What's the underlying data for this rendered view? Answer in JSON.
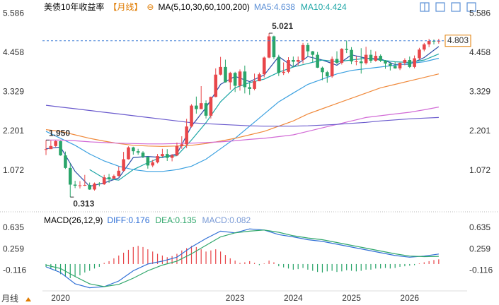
{
  "ui": {
    "period_button": "月线"
  },
  "chart_data": [
    {
      "type": "candlestick",
      "title": "美债10年收益率",
      "period": "【月线】",
      "ma_label": "MA(5,10,30,60,100,200)",
      "up_color": "#e8464a",
      "down_color": "#2aa56a",
      "categories": [
        null,
        null,
        null,
        "2020",
        null,
        null,
        null,
        null,
        null,
        null,
        null,
        null,
        null,
        null,
        null,
        null,
        null,
        null,
        null,
        null,
        null,
        null,
        null,
        null,
        null,
        null,
        null,
        null,
        null,
        null,
        null,
        null,
        null,
        null,
        null,
        null,
        null,
        null,
        null,
        "2023",
        null,
        null,
        null,
        null,
        null,
        null,
        null,
        null,
        null,
        null,
        null,
        "2024",
        null,
        null,
        null,
        null,
        null,
        null,
        null,
        null,
        null,
        null,
        null,
        "2025",
        null,
        null,
        null,
        null,
        null,
        null,
        null,
        null,
        null,
        null,
        null,
        "2026",
        null,
        null,
        null,
        null,
        null,
        null
      ],
      "ohlc": [
        [
          1.68,
          1.95,
          1.52,
          1.69
        ],
        [
          1.69,
          1.94,
          1.7,
          1.78
        ],
        [
          1.78,
          1.94,
          1.75,
          1.92
        ],
        [
          1.92,
          1.93,
          1.5,
          1.51
        ],
        [
          1.51,
          1.62,
          1.12,
          1.15
        ],
        [
          1.15,
          1.28,
          0.313,
          0.67
        ],
        [
          0.67,
          0.78,
          0.57,
          0.64
        ],
        [
          0.64,
          0.77,
          0.56,
          0.65
        ],
        [
          0.65,
          0.95,
          0.63,
          0.66
        ],
        [
          0.66,
          0.73,
          0.52,
          0.53
        ],
        [
          0.53,
          0.73,
          0.5,
          0.7
        ],
        [
          0.7,
          0.74,
          0.62,
          0.68
        ],
        [
          0.68,
          0.95,
          0.66,
          0.88
        ],
        [
          0.88,
          0.98,
          0.72,
          0.84
        ],
        [
          0.84,
          0.96,
          0.83,
          0.92
        ],
        [
          0.92,
          1.19,
          0.9,
          1.07
        ],
        [
          1.07,
          1.61,
          1.05,
          1.4
        ],
        [
          1.4,
          1.77,
          1.39,
          1.74
        ],
        [
          1.74,
          1.76,
          1.53,
          1.63
        ],
        [
          1.63,
          1.7,
          1.53,
          1.59
        ],
        [
          1.59,
          1.63,
          1.43,
          1.47
        ],
        [
          1.47,
          1.48,
          1.13,
          1.22
        ],
        [
          1.22,
          1.38,
          1.17,
          1.31
        ],
        [
          1.31,
          1.55,
          1.28,
          1.49
        ],
        [
          1.49,
          1.7,
          1.46,
          1.55
        ],
        [
          1.55,
          1.69,
          1.35,
          1.44
        ],
        [
          1.44,
          1.55,
          1.34,
          1.51
        ],
        [
          1.51,
          1.88,
          1.49,
          1.78
        ],
        [
          1.78,
          2.06,
          1.7,
          1.83
        ],
        [
          1.83,
          2.56,
          1.72,
          2.34
        ],
        [
          2.34,
          2.98,
          2.31,
          2.94
        ],
        [
          2.94,
          3.2,
          2.71,
          2.84
        ],
        [
          2.84,
          3.5,
          2.84,
          3.01
        ],
        [
          3.01,
          3.09,
          2.57,
          2.65
        ],
        [
          2.65,
          3.2,
          2.57,
          3.19
        ],
        [
          3.19,
          4.01,
          3.18,
          3.83
        ],
        [
          3.83,
          4.34,
          3.81,
          4.05
        ],
        [
          4.05,
          4.26,
          3.6,
          3.61
        ],
        [
          3.61,
          3.91,
          3.4,
          3.88
        ],
        [
          3.88,
          3.91,
          3.33,
          3.51
        ],
        [
          3.51,
          3.98,
          3.37,
          3.92
        ],
        [
          3.92,
          4.09,
          3.29,
          3.47
        ],
        [
          3.47,
          3.61,
          3.25,
          3.42
        ],
        [
          3.42,
          3.86,
          3.38,
          3.64
        ],
        [
          3.64,
          3.89,
          3.64,
          3.84
        ],
        [
          3.84,
          4.35,
          3.75,
          4.32
        ],
        [
          4.32,
          5.021,
          4.3,
          4.93
        ],
        [
          4.93,
          4.95,
          4.28,
          4.33
        ],
        [
          4.33,
          4.4,
          3.79,
          3.88
        ],
        [
          3.88,
          4.18,
          3.82,
          3.91
        ],
        [
          3.91,
          4.33,
          3.87,
          4.25
        ],
        [
          4.25,
          4.35,
          4.04,
          4.2
        ],
        [
          4.2,
          4.35,
          4.09,
          4.25
        ],
        [
          4.25,
          4.74,
          4.15,
          4.68
        ],
        [
          4.68,
          4.74,
          4.35,
          4.5
        ],
        [
          4.5,
          4.51,
          4.19,
          4.4
        ],
        [
          4.4,
          4.48,
          4.02,
          4.03
        ],
        [
          4.03,
          4.06,
          3.67,
          3.9
        ],
        [
          3.9,
          3.94,
          3.6,
          3.78
        ],
        [
          3.78,
          4.35,
          3.74,
          4.28
        ],
        [
          4.28,
          4.5,
          4.13,
          4.17
        ],
        [
          4.17,
          4.59,
          4.12,
          4.57
        ],
        [
          4.57,
          4.81,
          4.45,
          4.54
        ],
        [
          4.54,
          4.62,
          4.13,
          4.21
        ],
        [
          4.21,
          4.36,
          4.1,
          4.21
        ],
        [
          4.21,
          4.59,
          3.86,
          4.16
        ],
        [
          4.16,
          4.63,
          4.12,
          4.4
        ],
        [
          4.4,
          4.54,
          4.17,
          4.23
        ],
        [
          4.23,
          4.5,
          4.2,
          4.37
        ],
        [
          4.37,
          4.41,
          4.19,
          4.23
        ],
        [
          4.23,
          4.25,
          4.0,
          4.15
        ],
        [
          4.15,
          4.17,
          3.95,
          4.08
        ],
        [
          4.08,
          4.2,
          4.0,
          4.01
        ],
        [
          4.01,
          4.18,
          3.96,
          4.17
        ],
        [
          4.17,
          4.3,
          4.1,
          4.25
        ],
        [
          4.25,
          4.35,
          4.02,
          4.05
        ],
        [
          4.05,
          4.38,
          4.01,
          4.3
        ],
        [
          4.3,
          4.6,
          4.25,
          4.55
        ],
        [
          4.55,
          4.74,
          4.5,
          4.7
        ],
        [
          4.7,
          4.86,
          4.62,
          4.8
        ],
        [
          4.8,
          4.84,
          4.7,
          4.78
        ],
        [
          4.78,
          4.86,
          4.72,
          4.803
        ]
      ],
      "line_x": [
        0,
        3,
        6,
        9,
        12,
        15,
        18,
        21,
        24,
        27,
        30,
        33,
        36,
        39,
        42,
        45,
        48,
        51,
        54,
        57,
        60,
        63,
        66,
        69,
        72,
        75,
        78,
        81
      ],
      "lines": [
        {
          "legend_text": "MA5:4.638",
          "color": "#2f4fa8",
          "label_color": "#5b8fd6",
          "values": [
            1.7,
            1.75,
            1.05,
            0.62,
            0.72,
            0.86,
            1.45,
            1.48,
            1.45,
            1.55,
            2.35,
            2.88,
            3.55,
            3.78,
            3.63,
            3.82,
            4.35,
            4.05,
            4.35,
            4.25,
            4.1,
            4.4,
            4.3,
            4.28,
            4.12,
            4.13,
            4.32,
            4.638
          ]
        },
        {
          "legend_text": "MA10:4.424",
          "color": "#1ba5a5",
          "label_color": "#1ba5a5",
          "values": [
            null,
            null,
            null,
            1.1,
            0.85,
            0.8,
            1.1,
            1.3,
            1.47,
            1.5,
            1.95,
            2.45,
            3.05,
            3.45,
            3.6,
            3.7,
            3.9,
            4.05,
            4.15,
            4.25,
            4.2,
            4.25,
            4.3,
            4.25,
            4.2,
            4.18,
            4.25,
            4.424
          ]
        },
        {
          "color": "#3aa0e0",
          "values": [
            2.2,
            2.0,
            1.8,
            1.55,
            1.35,
            1.2,
            1.1,
            1.05,
            1.05,
            1.1,
            1.2,
            1.4,
            1.7,
            2.0,
            2.35,
            2.7,
            3.05,
            3.3,
            3.55,
            3.7,
            3.85,
            3.95,
            4.0,
            4.05,
            4.1,
            4.15,
            4.2,
            4.3
          ]
        },
        {
          "color": "#f08a3c",
          "values": [
            2.25,
            2.2,
            2.1,
            2.0,
            1.92,
            1.85,
            1.8,
            1.78,
            1.77,
            1.78,
            1.8,
            1.85,
            1.92,
            2.0,
            2.1,
            2.2,
            2.35,
            2.5,
            2.7,
            2.85,
            3.0,
            3.15,
            3.3,
            3.45,
            3.55,
            3.65,
            3.75,
            3.85
          ]
        },
        {
          "color": "#d26bd6",
          "values": [
            1.95,
            1.95,
            1.93,
            1.9,
            1.88,
            1.86,
            1.85,
            1.84,
            1.84,
            1.85,
            1.86,
            1.88,
            1.9,
            1.93,
            1.97,
            2.0,
            2.05,
            2.1,
            2.2,
            2.3,
            2.4,
            2.5,
            2.6,
            2.65,
            2.7,
            2.75,
            2.82,
            2.9
          ]
        },
        {
          "color": "#6a5acd",
          "values": [
            2.95,
            2.9,
            2.85,
            2.8,
            2.75,
            2.7,
            2.65,
            2.6,
            2.55,
            2.5,
            2.45,
            2.42,
            2.4,
            2.38,
            2.36,
            2.35,
            2.35,
            2.35,
            2.36,
            2.38,
            2.4,
            2.43,
            2.46,
            2.5,
            2.53,
            2.56,
            2.58,
            2.6
          ]
        }
      ],
      "annotations": [
        {
          "label": "5.021",
          "value": 5.021,
          "index": 46
        },
        {
          "label": "1.950",
          "value": 1.95,
          "index": 0
        },
        {
          "label": "0.313",
          "value": 0.313,
          "index": 5
        }
      ],
      "last_color": "#e07b00",
      "ylim": [
        -0.07,
        5.69
      ],
      "yticks": [
        5.586,
        4.458,
        3.329,
        2.201,
        1.072
      ],
      "grid": false
    },
    {
      "type": "macd",
      "title": "MACD(26,12,9)",
      "ylim": [
        -0.45,
        0.86
      ],
      "yticks": [
        0.635,
        0.259,
        -0.116
      ],
      "line_x": [
        0,
        3,
        6,
        9,
        12,
        15,
        18,
        21,
        24,
        27,
        30,
        33,
        36,
        39,
        42,
        45,
        48,
        51,
        54,
        57,
        60,
        63,
        66,
        69,
        72,
        75,
        78,
        81
      ],
      "series": [
        {
          "legend_text": "DIFF:0.176",
          "color": "#2f6fd6",
          "values": [
            -0.05,
            -0.15,
            -0.35,
            -0.42,
            -0.4,
            -0.3,
            -0.12,
            0.0,
            0.05,
            0.12,
            0.3,
            0.45,
            0.58,
            0.55,
            0.62,
            0.6,
            0.52,
            0.48,
            0.43,
            0.4,
            0.35,
            0.3,
            0.25,
            0.2,
            0.15,
            0.12,
            0.14,
            0.176
          ]
        },
        {
          "legend_text": "DEA:0.135",
          "color": "#2ea66a",
          "values": [
            -0.02,
            -0.08,
            -0.22,
            -0.35,
            -0.4,
            -0.36,
            -0.25,
            -0.12,
            -0.02,
            0.05,
            0.18,
            0.33,
            0.48,
            0.55,
            0.58,
            0.6,
            0.56,
            0.5,
            0.46,
            0.43,
            0.38,
            0.33,
            0.28,
            0.23,
            0.18,
            0.14,
            0.13,
            0.135
          ]
        }
      ],
      "histogram": {
        "legend_text": "MACD:0.082",
        "up_color": "#e8464a",
        "down_color": "#2aa56a",
        "label_color": "#7b9bd6",
        "values": [
          -0.05,
          -0.08,
          -0.12,
          -0.18,
          -0.22,
          -0.25,
          -0.22,
          -0.2,
          -0.15,
          -0.12,
          -0.08,
          -0.05,
          0.02,
          0.05,
          0.1,
          0.15,
          0.2,
          0.25,
          0.3,
          0.32,
          0.3,
          0.26,
          0.22,
          0.18,
          0.15,
          0.12,
          0.14,
          0.18,
          0.24,
          0.28,
          0.32,
          0.3,
          0.26,
          0.22,
          0.24,
          0.26,
          0.22,
          0.16,
          0.1,
          0.06,
          0.02,
          0.03,
          0.05,
          0.02,
          -0.02,
          0.01,
          0.06,
          0.03,
          -0.04,
          -0.06,
          -0.08,
          -0.1,
          -0.09,
          -0.07,
          -0.1,
          -0.12,
          -0.14,
          -0.15,
          -0.13,
          -0.12,
          -0.14,
          -0.13,
          -0.11,
          -0.12,
          -0.13,
          -0.12,
          -0.1,
          -0.1,
          -0.08,
          -0.08,
          -0.07,
          -0.08,
          -0.07,
          -0.05,
          -0.04,
          -0.03,
          -0.02,
          0.01,
          0.03,
          0.05,
          0.07,
          0.082
        ]
      }
    }
  ]
}
